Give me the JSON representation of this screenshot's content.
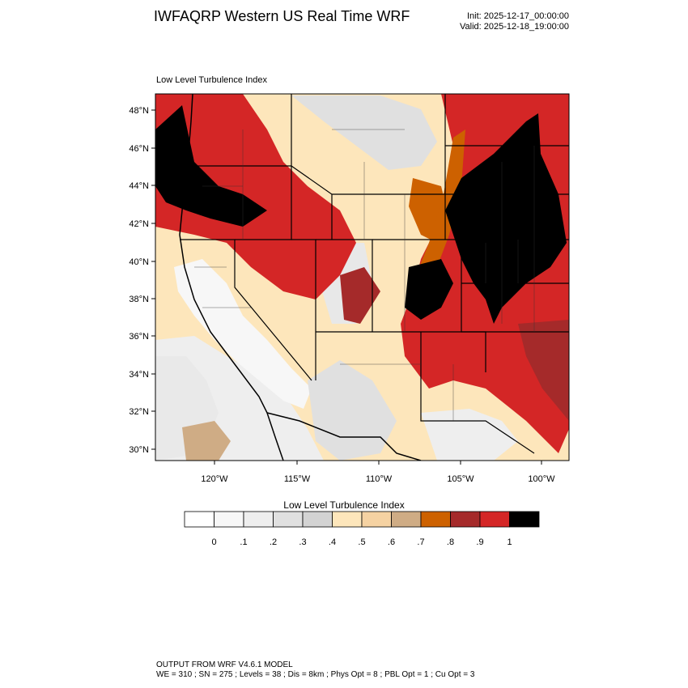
{
  "header": {
    "title": "IWFAQRP Western US Real Time WRF",
    "init": "Init: 2025-12-17_00:00:00",
    "valid": "Valid: 2025-12-18_19:00:00"
  },
  "panel": {
    "title": "Low Level Turbulence Index"
  },
  "map": {
    "lat_ticks": [
      "30°N",
      "32°N",
      "34°N",
      "36°N",
      "38°N",
      "40°N",
      "42°N",
      "44°N",
      "46°N",
      "48°N"
    ],
    "lon_ticks": [
      "120°W",
      "115°W",
      "110°W",
      "105°W",
      "100°W"
    ]
  },
  "colorbar": {
    "title": "Low Level Turbulence Index",
    "labels": [
      "0",
      ".1",
      ".2",
      ".3",
      ".4",
      ".5",
      ".6",
      ".7",
      ".8",
      ".9",
      "1"
    ],
    "colors": [
      "#ffffff",
      "#f7f7f7",
      "#eeeeee",
      "#e0e0e0",
      "#d3d3d3",
      "#fde6bb",
      "#f5d2a2",
      "#cfac85",
      "#cd6100",
      "#a52a2a",
      "#d42626",
      "#000000"
    ]
  },
  "footer": {
    "line1": "OUTPUT FROM WRF V4.6.1 MODEL",
    "line2": "WE = 310 ; SN = 275 ; Levels = 38 ; Dis = 8km ; Phys Opt = 8 ; PBL Opt = 1 ; Cu Opt = 3"
  }
}
